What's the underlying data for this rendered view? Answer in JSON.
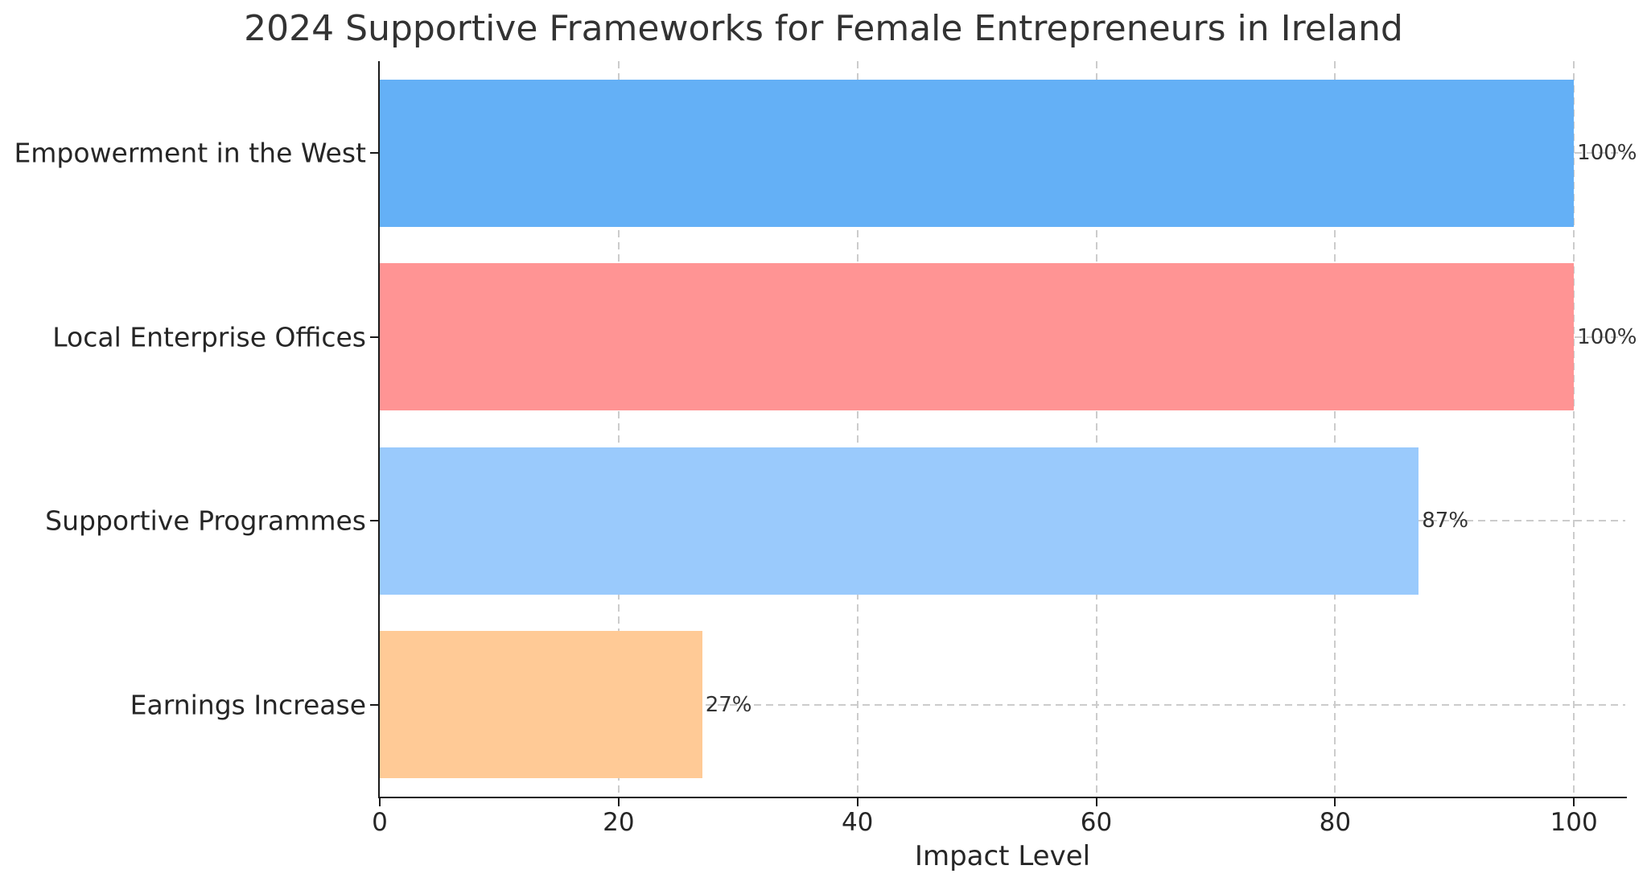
{
  "chart_data": {
    "type": "bar",
    "orientation": "horizontal",
    "title": "2024 Supportive Frameworks for Female Entrepreneurs in Ireland",
    "xlabel": "Impact Level",
    "ylabel": "",
    "categories": [
      "Empowerment in the West",
      "Local Enterprise Offices",
      "Supportive Programmes",
      "Earnings Increase"
    ],
    "values": [
      100,
      100,
      87,
      27
    ],
    "value_labels": [
      "100%",
      "100%",
      "87%",
      "27%"
    ],
    "bar_colors": [
      "#64b0f6",
      "#ff9494",
      "#9acafc",
      "#ffca96"
    ],
    "x_ticks": [
      0,
      20,
      40,
      60,
      80,
      100
    ],
    "xlim": [
      0,
      104.3
    ],
    "bar_height_fraction": 0.8,
    "grid": {
      "visible": true,
      "style": "dashed",
      "color": "#cccccc",
      "axes": "both"
    },
    "legend": {
      "visible": false
    },
    "colors": {
      "text": "#333333",
      "axis": "#1a1a1a",
      "background": "#ffffff"
    }
  }
}
